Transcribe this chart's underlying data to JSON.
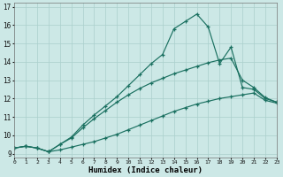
{
  "xlabel": "Humidex (Indice chaleur)",
  "background_color": "#cce8e6",
  "grid_color": "#aacfcc",
  "line_color": "#1a7060",
  "xticks": [
    0,
    1,
    2,
    3,
    4,
    5,
    6,
    7,
    8,
    9,
    10,
    11,
    12,
    13,
    14,
    15,
    16,
    17,
    18,
    19,
    20,
    21,
    22,
    23
  ],
  "yticks": [
    9,
    10,
    11,
    12,
    13,
    14,
    15,
    16,
    17
  ],
  "xlim": [
    0,
    23
  ],
  "ylim": [
    8.8,
    17.2
  ],
  "line1_x": [
    0,
    1,
    2,
    3,
    4,
    5,
    6,
    7,
    8,
    9,
    10,
    11,
    12,
    13,
    14,
    15,
    16,
    17,
    18,
    19,
    20,
    21,
    22,
    23
  ],
  "line1_y": [
    9.3,
    9.4,
    9.3,
    9.1,
    9.2,
    9.35,
    9.5,
    9.65,
    9.85,
    10.05,
    10.3,
    10.55,
    10.8,
    11.05,
    11.3,
    11.5,
    11.7,
    11.85,
    12.0,
    12.1,
    12.2,
    12.3,
    11.9,
    11.75
  ],
  "line2_x": [
    0,
    1,
    2,
    3,
    4,
    5,
    6,
    7,
    8,
    9,
    10,
    11,
    12,
    13,
    14,
    15,
    16,
    17,
    18,
    19,
    20,
    21,
    22,
    23
  ],
  "line2_y": [
    9.3,
    9.4,
    9.3,
    9.1,
    9.5,
    9.85,
    10.4,
    10.9,
    11.35,
    11.8,
    12.2,
    12.55,
    12.85,
    13.1,
    13.35,
    13.55,
    13.75,
    13.95,
    14.1,
    14.2,
    13.0,
    12.6,
    12.05,
    11.8
  ],
  "line3_x": [
    0,
    1,
    2,
    3,
    4,
    5,
    6,
    7,
    8,
    9,
    10,
    11,
    12,
    13,
    14,
    15,
    16,
    17,
    18,
    19,
    20,
    21,
    22,
    23
  ],
  "line3_y": [
    9.3,
    9.4,
    9.3,
    9.1,
    9.5,
    9.9,
    10.55,
    11.1,
    11.6,
    12.1,
    12.7,
    13.3,
    13.9,
    14.4,
    15.8,
    16.2,
    16.6,
    15.9,
    13.9,
    14.8,
    12.6,
    12.5,
    12.0,
    11.8
  ]
}
